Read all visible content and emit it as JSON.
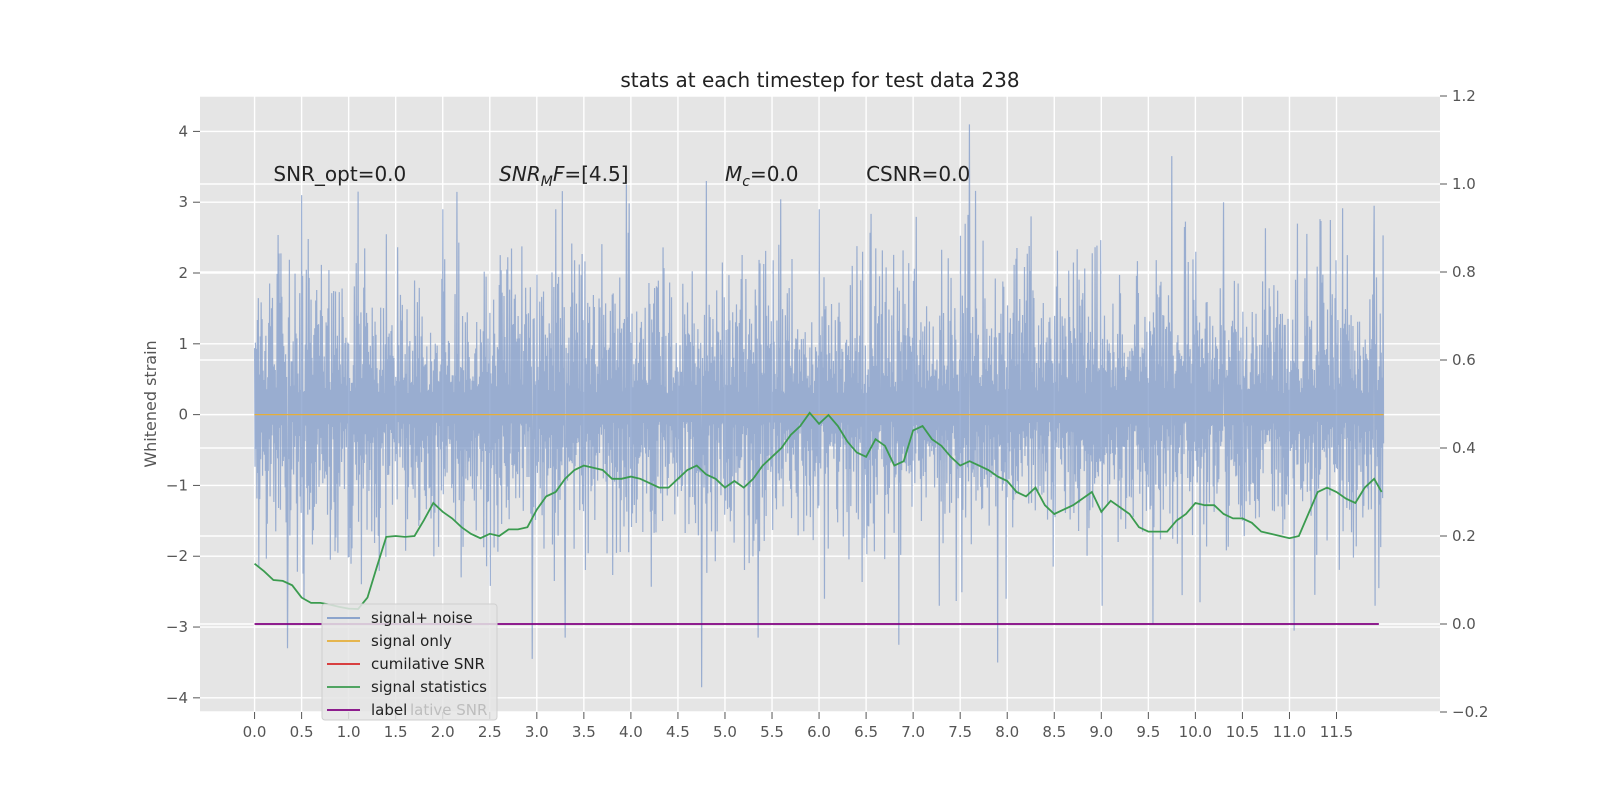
{
  "chart_data": {
    "type": "line",
    "title": "stats at each timestep for test data 238",
    "ylabel": "Whitened strain",
    "y2label": "",
    "xlim": [
      -0.58,
      12.6
    ],
    "ylim": [
      -4.2,
      4.5
    ],
    "y2lim": [
      -0.2,
      1.2
    ],
    "xticks": [
      0.0,
      0.5,
      1.0,
      1.5,
      2.0,
      2.5,
      3.0,
      3.5,
      4.0,
      4.5,
      5.0,
      5.5,
      6.0,
      6.5,
      7.0,
      7.5,
      8.0,
      8.5,
      9.0,
      9.5,
      10.0,
      10.5,
      11.0,
      11.5
    ],
    "xticklabels": [
      "0.0",
      "0.5",
      "1.0",
      "1.5",
      "2.0",
      "2.5",
      "3.0",
      "3.5",
      "4.0",
      "4.5",
      "5.0",
      "5.5",
      "6.0",
      "6.5",
      "7.0",
      "7.5",
      "8.0",
      "8.5",
      "9.0",
      "9.5",
      "10.0",
      "10.5",
      "11.0",
      "11.5"
    ],
    "yticks": [
      -4,
      -3,
      -2,
      -1,
      0,
      1,
      2,
      3,
      4
    ],
    "yticklabels": [
      "−4",
      "−3",
      "−2",
      "−1",
      "0",
      "1",
      "2",
      "3",
      "4"
    ],
    "y2ticks": [
      -0.2,
      0.0,
      0.2,
      0.4,
      0.6,
      0.8,
      1.0,
      1.2
    ],
    "y2ticklabels": [
      "−0.2",
      "0.0",
      "0.2",
      "0.4",
      "0.6",
      "0.8",
      "1.0",
      "1.2"
    ],
    "grid": true,
    "legend_position": "lower-left",
    "annotations": [
      {
        "text": "SNR_opt=0.0",
        "x": 0.2,
        "y": 3.3
      },
      {
        "text": "SNR_MF=[4.5]",
        "x": 2.6,
        "y": 3.3
      },
      {
        "text": "M_c=0.0",
        "x": 5.0,
        "y": 3.3
      },
      {
        "text": "CSNR=0.0",
        "x": 6.5,
        "y": 3.3
      }
    ],
    "series": [
      {
        "name": "signal+ noise",
        "color": "#7f9ac8",
        "axis": "left",
        "kind": "noise",
        "x_range": [
          0.0,
          12.0
        ],
        "envelope_typical": [
          -1.7,
          2.0
        ],
        "peaks": [
          {
            "x": 0.5,
            "y": 3.1
          },
          {
            "x": 1.1,
            "y": 3.15
          },
          {
            "x": 2.0,
            "y": 2.9
          },
          {
            "x": 3.2,
            "y": 2.9
          },
          {
            "x": 3.95,
            "y": 3.25
          },
          {
            "x": 4.8,
            "y": 3.3
          },
          {
            "x": 6.0,
            "y": 2.9
          },
          {
            "x": 7.6,
            "y": 4.1
          },
          {
            "x": 9.75,
            "y": 3.65
          },
          {
            "x": 10.3,
            "y": 3.0
          },
          {
            "x": 11.9,
            "y": 2.95
          },
          {
            "x": 0.35,
            "y": -3.3
          },
          {
            "x": 2.95,
            "y": -3.45
          },
          {
            "x": 3.3,
            "y": -3.15
          },
          {
            "x": 4.75,
            "y": -3.85
          },
          {
            "x": 5.35,
            "y": -3.15
          },
          {
            "x": 6.85,
            "y": -3.25
          },
          {
            "x": 7.9,
            "y": -3.5
          },
          {
            "x": 9.55,
            "y": -2.95
          },
          {
            "x": 11.05,
            "y": -3.05
          }
        ]
      },
      {
        "name": "signal only",
        "color": "#e5ae38",
        "axis": "left",
        "x": [
          0.0,
          12.0
        ],
        "y": [
          0.0,
          0.0
        ]
      },
      {
        "name": "cumilative SNR",
        "color": "#d62728",
        "axis": "right",
        "x": [],
        "y": []
      },
      {
        "name": "signal statistics",
        "color": "#3b9b4f",
        "axis": "right",
        "x": [
          0.0,
          0.1,
          0.2,
          0.3,
          0.4,
          0.5,
          0.6,
          0.7,
          0.8,
          0.9,
          1.0,
          1.1,
          1.2,
          1.3,
          1.4,
          1.5,
          1.6,
          1.7,
          1.8,
          1.9,
          2.0,
          2.1,
          2.2,
          2.3,
          2.4,
          2.5,
          2.6,
          2.7,
          2.8,
          2.9,
          3.0,
          3.1,
          3.2,
          3.3,
          3.4,
          3.5,
          3.6,
          3.7,
          3.8,
          3.9,
          4.0,
          4.1,
          4.2,
          4.3,
          4.4,
          4.5,
          4.6,
          4.7,
          4.8,
          4.9,
          5.0,
          5.1,
          5.2,
          5.3,
          5.4,
          5.5,
          5.6,
          5.7,
          5.8,
          5.9,
          6.0,
          6.1,
          6.2,
          6.3,
          6.4,
          6.5,
          6.6,
          6.7,
          6.8,
          6.9,
          7.0,
          7.1,
          7.2,
          7.3,
          7.4,
          7.5,
          7.6,
          7.7,
          7.8,
          7.9,
          8.0,
          8.1,
          8.2,
          8.3,
          8.4,
          8.5,
          8.6,
          8.7,
          8.8,
          8.9,
          9.0,
          9.1,
          9.2,
          9.3,
          9.4,
          9.5,
          9.6,
          9.7,
          9.8,
          9.9,
          10.0,
          10.1,
          10.2,
          10.3,
          10.4,
          10.5,
          10.6,
          10.7,
          10.8,
          10.9,
          11.0,
          11.1,
          11.2,
          11.3,
          11.4,
          11.5,
          11.6,
          11.7,
          11.8,
          11.9,
          11.98
        ],
        "y": [
          0.137,
          0.12,
          0.1,
          0.098,
          0.088,
          0.06,
          0.048,
          0.048,
          0.044,
          0.039,
          0.035,
          0.034,
          0.06,
          0.13,
          0.198,
          0.2,
          0.198,
          0.2,
          0.236,
          0.275,
          0.255,
          0.24,
          0.22,
          0.205,
          0.195,
          0.205,
          0.2,
          0.215,
          0.215,
          0.22,
          0.26,
          0.29,
          0.3,
          0.33,
          0.35,
          0.36,
          0.355,
          0.35,
          0.33,
          0.33,
          0.335,
          0.33,
          0.32,
          0.31,
          0.31,
          0.33,
          0.35,
          0.36,
          0.34,
          0.33,
          0.31,
          0.325,
          0.31,
          0.33,
          0.36,
          0.38,
          0.4,
          0.43,
          0.45,
          0.48,
          0.455,
          0.475,
          0.45,
          0.415,
          0.39,
          0.38,
          0.42,
          0.405,
          0.36,
          0.37,
          0.44,
          0.45,
          0.42,
          0.405,
          0.38,
          0.36,
          0.37,
          0.36,
          0.35,
          0.335,
          0.325,
          0.3,
          0.29,
          0.31,
          0.27,
          0.25,
          0.26,
          0.27,
          0.285,
          0.3,
          0.255,
          0.28,
          0.265,
          0.25,
          0.22,
          0.21,
          0.21,
          0.21,
          0.235,
          0.25,
          0.275,
          0.27,
          0.27,
          0.25,
          0.24,
          0.24,
          0.23,
          0.21,
          0.205,
          0.2,
          0.195,
          0.2,
          0.25,
          0.3,
          0.31,
          0.3,
          0.285,
          0.275,
          0.31,
          0.33,
          0.3
        ]
      },
      {
        "name": "label",
        "color": "#800080",
        "axis": "right",
        "x": [
          0.0,
          11.95
        ],
        "y": [
          0.0,
          0.0
        ]
      }
    ],
    "legend_shadow_text": "lative SNR"
  }
}
